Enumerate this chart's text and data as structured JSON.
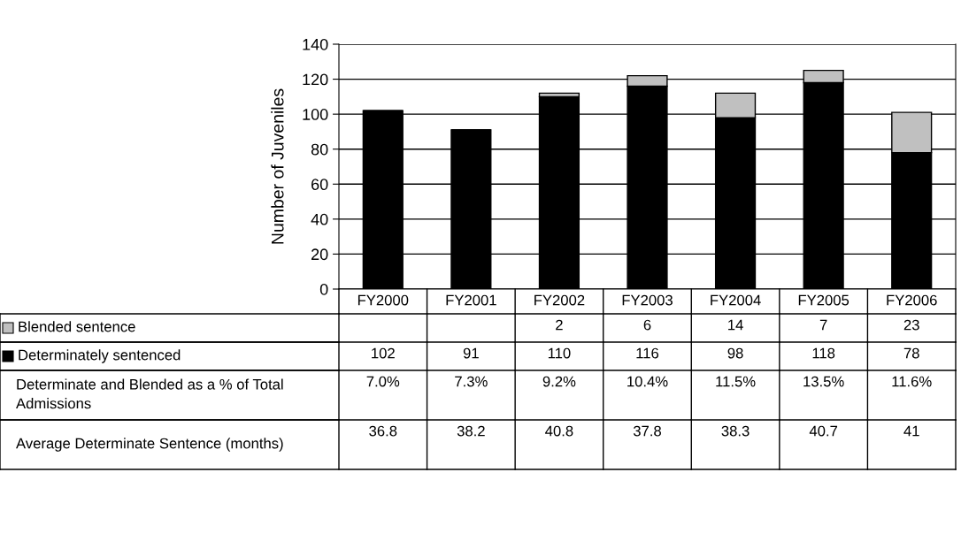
{
  "chart_data": {
    "type": "bar",
    "stacked": true,
    "ylabel": "Number of Juveniles",
    "categories": [
      "FY2000",
      "FY2001",
      "FY2002",
      "FY2003",
      "FY2004",
      "FY2005",
      "FY2006"
    ],
    "series": [
      {
        "name": "Determinately sentenced",
        "color": "#000000",
        "values": [
          102,
          91,
          110,
          116,
          98,
          118,
          78
        ]
      },
      {
        "name": "Blended sentence",
        "color": "#c0c0c0",
        "values": [
          null,
          null,
          2,
          6,
          14,
          7,
          23
        ]
      }
    ],
    "annotations": [
      "Determinate and Blended as a % of Total Admissions",
      "7.0%",
      "7.3%",
      "9.2%",
      "10.4%",
      "11.5%",
      "13.5%",
      "11.6%",
      "Average Determinate Sentence (months)",
      "36.8",
      "38.2",
      "40.8",
      "37.8",
      "38.3",
      "40.7",
      "41"
    ],
    "ylim": [
      0,
      140
    ],
    "yticks": [
      0,
      20,
      40,
      60,
      80,
      100,
      120,
      140
    ],
    "grid": "y",
    "data_labels": true,
    "legend": "left"
  }
}
